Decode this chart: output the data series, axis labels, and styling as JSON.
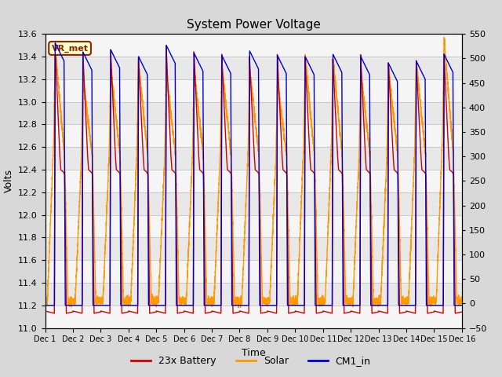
{
  "title": "System Power Voltage",
  "xlabel": "Time",
  "ylabel": "Volts",
  "ylim_left": [
    11.0,
    13.6
  ],
  "ylim_right": [
    -50,
    550
  ],
  "yticks_left": [
    11.0,
    11.2,
    11.4,
    11.6,
    11.8,
    12.0,
    12.2,
    12.4,
    12.6,
    12.8,
    13.0,
    13.2,
    13.4,
    13.6
  ],
  "yticks_right": [
    -50,
    0,
    50,
    100,
    150,
    200,
    250,
    300,
    350,
    400,
    450,
    500,
    550
  ],
  "xticklabels": [
    "Dec 1",
    "Dec 2",
    "Dec 3",
    "Dec 4",
    "Dec 5",
    "Dec 6",
    "Dec 7",
    "Dec 8",
    "Dec 9",
    "Dec 10",
    "Dec 11",
    "Dec 12",
    "Dec 13",
    "Dec 14",
    "Dec 15",
    "Dec 16"
  ],
  "legend_labels": [
    "23x Battery",
    "Solar",
    "CM1_in"
  ],
  "colors": {
    "battery": "#cc0000",
    "solar": "#ff9900",
    "cm1": "#0000cc"
  },
  "vr_met_label": "VR_met",
  "n_days": 15
}
